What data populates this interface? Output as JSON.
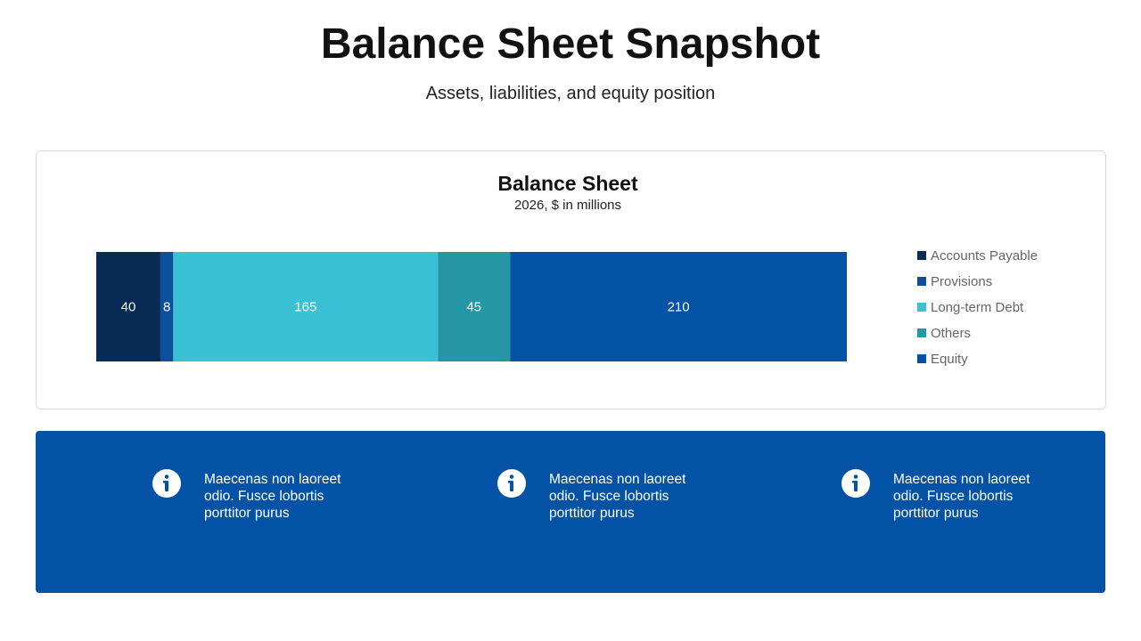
{
  "header": {
    "title": "Balance Sheet Snapshot",
    "subtitle": "Assets, liabilities, and equity position"
  },
  "chart_data": {
    "type": "bar",
    "orientation": "horizontal",
    "stacked": true,
    "title": "Balance Sheet",
    "subtitle": "2026, $ in millions",
    "legend": "right",
    "series": [
      {
        "name": "Accounts Payable",
        "color": "#072b55",
        "values": [
          40
        ]
      },
      {
        "name": "Provisions",
        "color": "#0b4f9e",
        "values": [
          8
        ]
      },
      {
        "name": "Long-term Debt",
        "color": "#3bc1d4",
        "values": [
          165
        ]
      },
      {
        "name": "Others",
        "color": "#2596a6",
        "values": [
          45
        ]
      },
      {
        "name": "Equity",
        "color": "#0253a6",
        "values": [
          210
        ]
      }
    ]
  },
  "info": {
    "items": [
      {
        "text": "Maecenas non laoreet odio. Fusce lobortis porttitor purus"
      },
      {
        "text": "Maecenas non laoreet odio. Fusce lobortis porttitor purus"
      },
      {
        "text": "Maecenas non laoreet odio. Fusce lobortis porttitor purus"
      }
    ]
  }
}
